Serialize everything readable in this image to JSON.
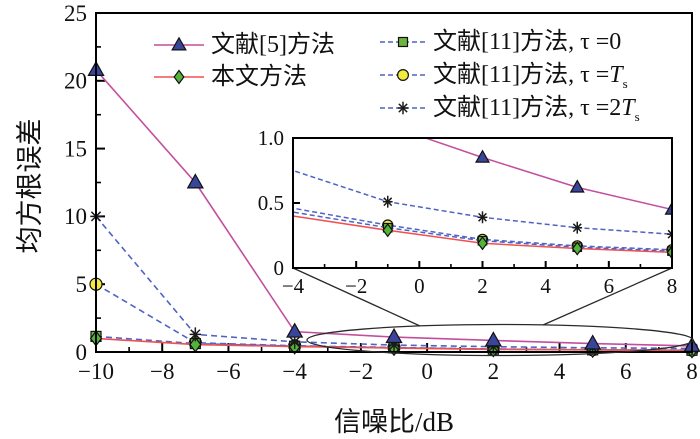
{
  "figure": {
    "xlabel": "信噪比/dB",
    "ylabel": "均方根误差"
  },
  "legend": {
    "items": [
      {
        "text": "文献[5]方法",
        "tail_italic": "",
        "sub": ""
      },
      {
        "text": "本文方法",
        "tail_italic": "",
        "sub": ""
      },
      {
        "text": "文献[11]方法, τ =0",
        "tail_italic": "",
        "sub": ""
      },
      {
        "text": "文献[11]方法, τ =",
        "tail_italic": "T",
        "sub": "s"
      },
      {
        "text": "文献[11]方法, τ =2",
        "tail_italic": "T",
        "sub": "s"
      }
    ]
  },
  "chart_data": {
    "type": "line",
    "title": "",
    "xlabel": "信噪比/dB",
    "ylabel": "均方根误差",
    "x": [
      -10,
      -7,
      -4,
      -1,
      2,
      5,
      8
    ],
    "xlim": [
      -10,
      8
    ],
    "ylim": [
      0,
      25
    ],
    "grid": false,
    "legend_position": "top-inside",
    "xticks": {
      "values": [
        -10,
        -8,
        -6,
        -4,
        -2,
        0,
        2,
        4,
        6,
        8
      ],
      "labels": [
        "−10",
        "−8",
        "−6",
        "−4",
        "−2",
        "0",
        "2",
        "4",
        "6",
        "8"
      ],
      "minor": [
        -9,
        -7,
        -5,
        -3,
        -1,
        1,
        3,
        5,
        7
      ]
    },
    "yticks": {
      "values": [
        0,
        5,
        10,
        15,
        20,
        25
      ],
      "labels": [
        "0",
        "5",
        "10",
        "15",
        "20",
        "25"
      ],
      "minor": [
        2.5,
        7.5,
        12.5,
        17.5,
        22.5
      ]
    },
    "series": [
      {
        "name": "文献[5]方法",
        "marker": "triangle",
        "marker_color": "#39449b",
        "line_color": "#c44e9e",
        "line_style": "solid",
        "values": [
          20.8,
          12.5,
          1.5,
          1.1,
          0.85,
          0.62,
          0.45
        ]
      },
      {
        "name": "本文方法",
        "marker": "diamond",
        "marker_color": "#53b43a",
        "line_color": "#f0504f",
        "line_style": "solid",
        "values": [
          1.0,
          0.55,
          0.4,
          0.29,
          0.19,
          0.15,
          0.12
        ]
      },
      {
        "name": "文献[11]方法, τ=0",
        "marker": "square",
        "marker_color": "#6db33c",
        "line_color": "#4f63c4",
        "line_style": "dashed",
        "values": [
          1.15,
          0.62,
          0.43,
          0.31,
          0.21,
          0.16,
          0.13
        ]
      },
      {
        "name": "文献[11]方法, τ=T_s",
        "marker": "circle",
        "marker_color": "#f3ec3d",
        "line_color": "#4f63c4",
        "line_style": "dashed",
        "values": [
          5.0,
          0.68,
          0.46,
          0.33,
          0.22,
          0.17,
          0.14
        ]
      },
      {
        "name": "文献[11]方法, τ=2T_s",
        "marker": "asterisk",
        "marker_color": "#1a1a1a",
        "line_color": "#4f63c4",
        "line_style": "dashed",
        "values": [
          10.0,
          1.3,
          0.75,
          0.51,
          0.39,
          0.31,
          0.26
        ]
      }
    ],
    "inset": {
      "xlim": [
        -4,
        8
      ],
      "ylim": [
        0,
        1.0
      ],
      "xticks": {
        "values": [
          -4,
          -2,
          0,
          2,
          4,
          6,
          8
        ],
        "labels": [
          "−4",
          "−2",
          "0",
          "2",
          "4",
          "6",
          "8"
        ],
        "minor": [
          -3,
          -1,
          1,
          3,
          5,
          7
        ]
      },
      "yticks": {
        "values": [
          0,
          0.5,
          1.0
        ],
        "labels": [
          "0",
          "0.5",
          "1.0"
        ],
        "minor": []
      }
    },
    "colors": {
      "axis": "#000000",
      "callout": "#2a2a2a",
      "ref5_line": "#c44e9e",
      "proposed_line": "#f0504f",
      "ref11_line": "#4f63c4"
    }
  }
}
